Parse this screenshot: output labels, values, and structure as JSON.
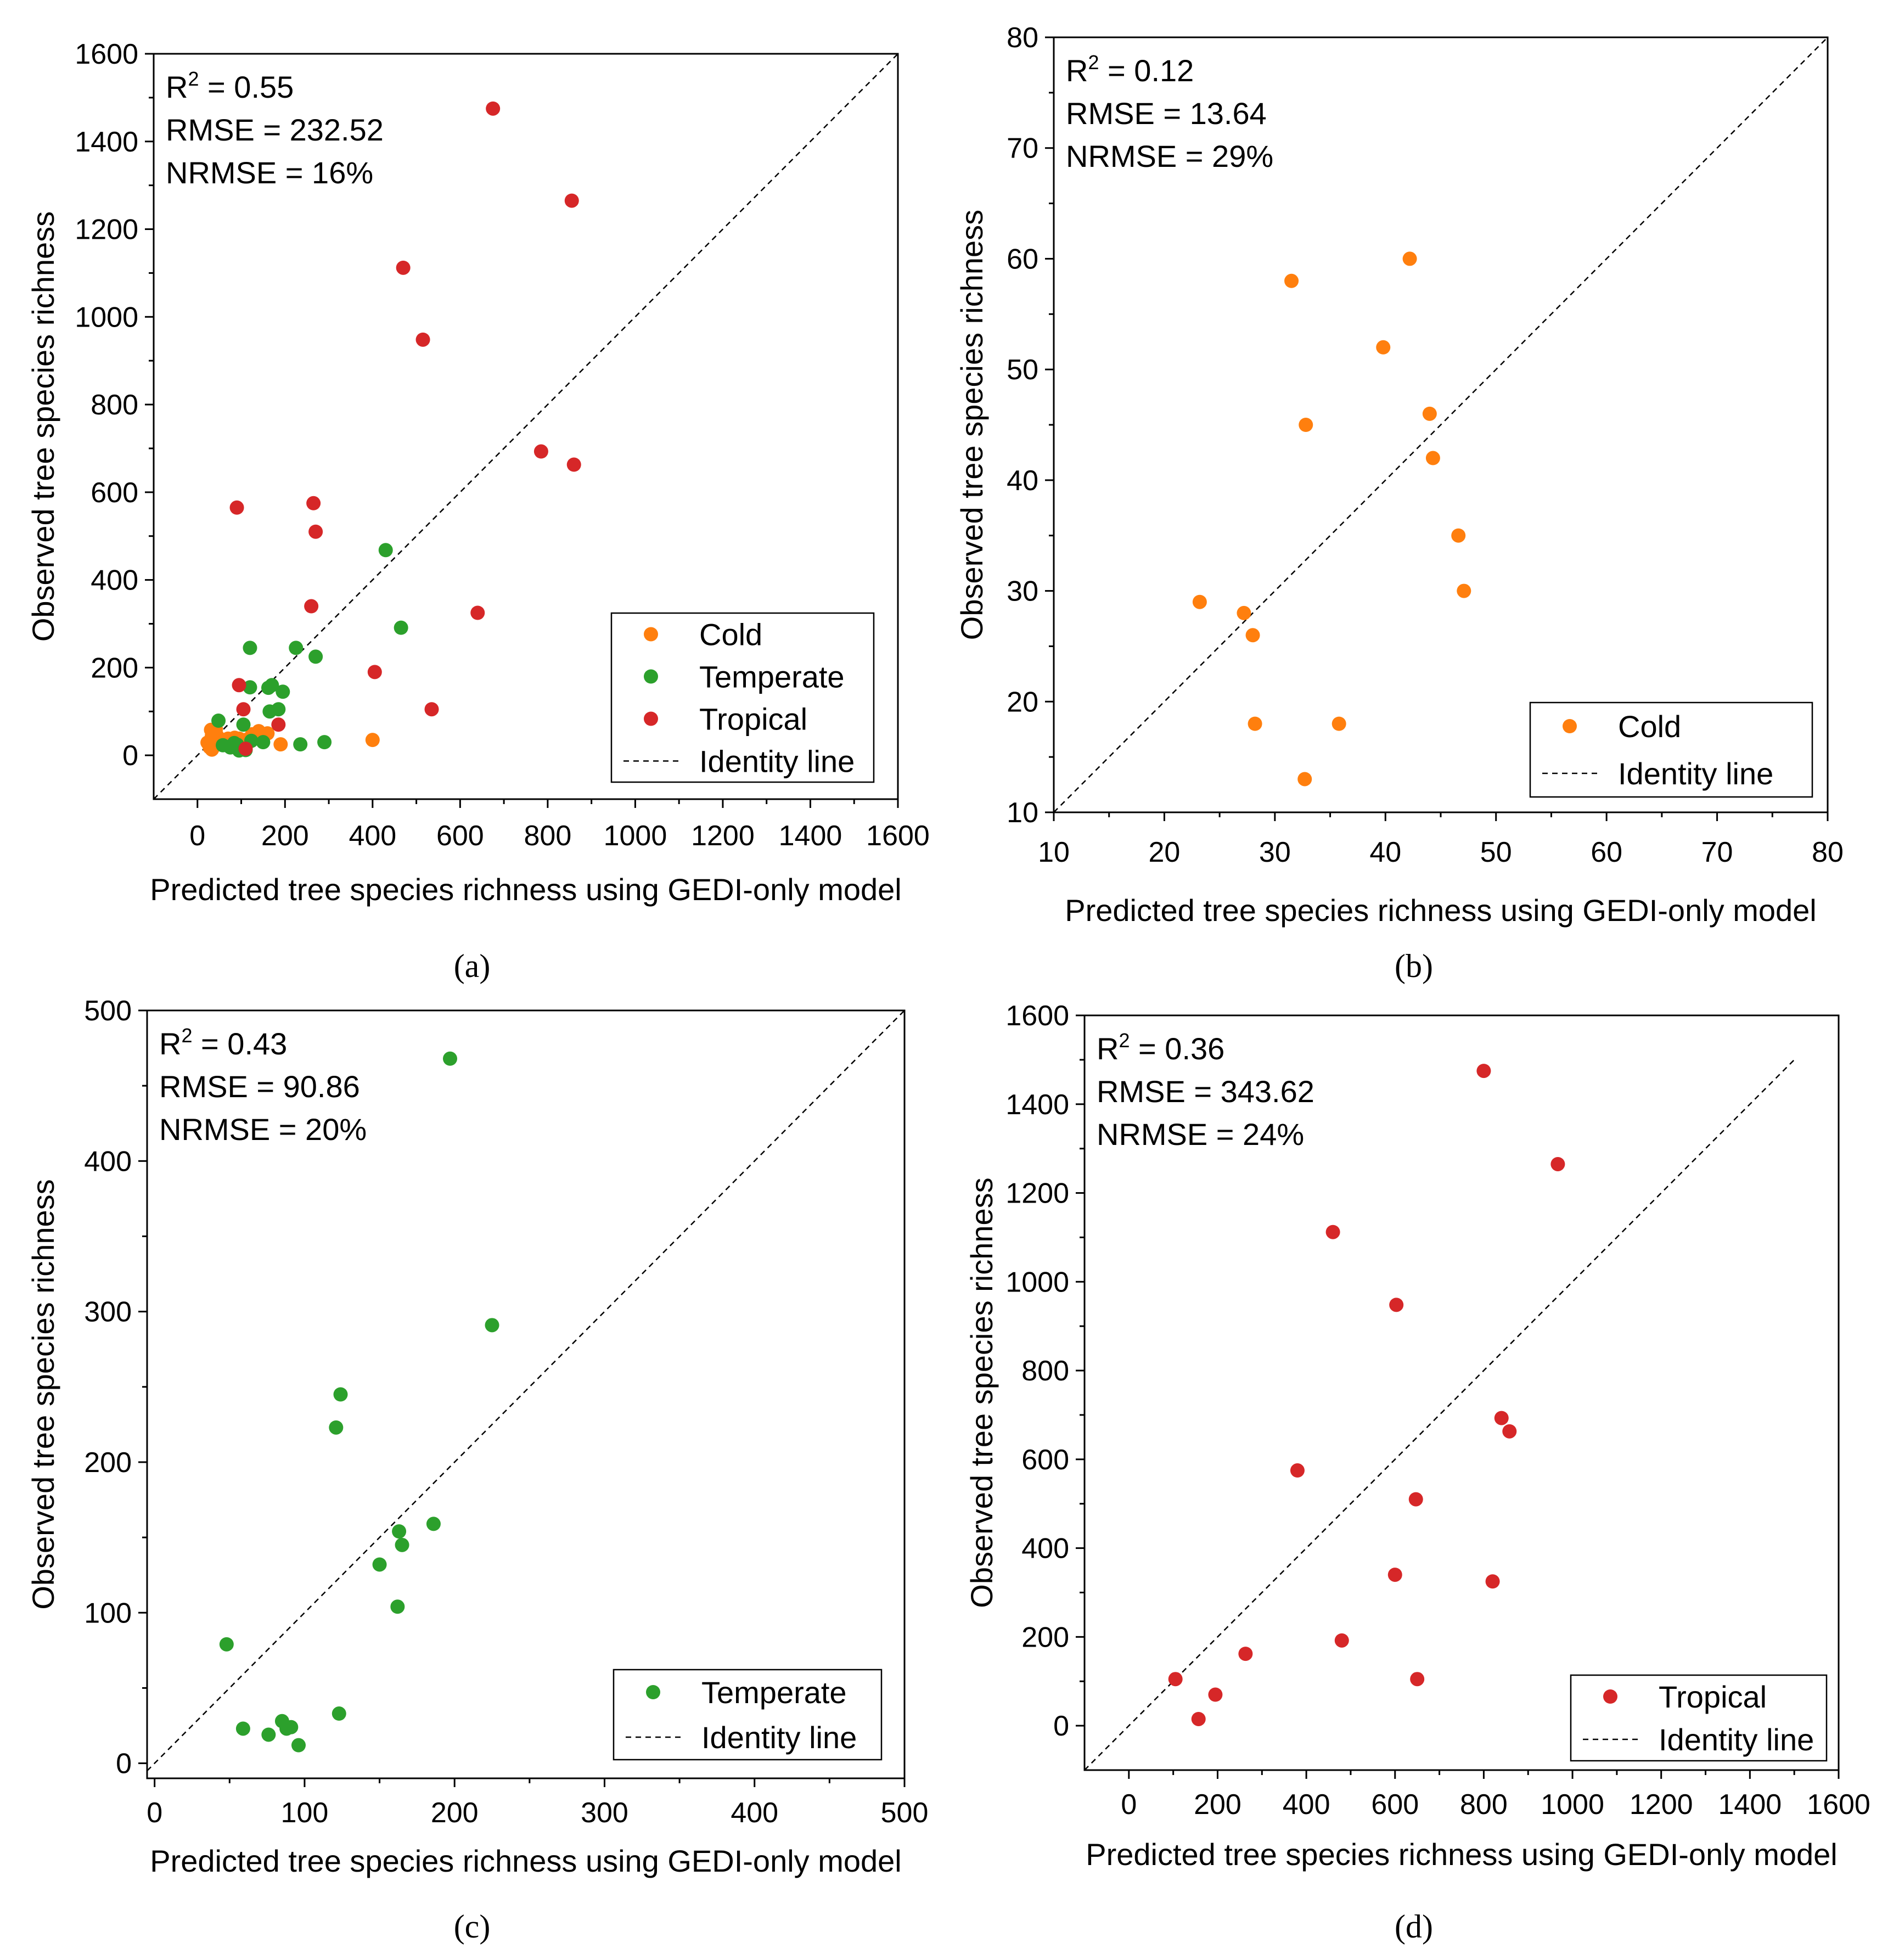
{
  "chart_data": [
    {
      "type": "scatter",
      "panel": "a",
      "caption": "(a)",
      "xlabel": "Predicted tree species richness using GEDI-only model",
      "ylabel": "Observed tree species richness",
      "xlim": [
        -100,
        1600
      ],
      "ylim": [
        -100,
        1600
      ],
      "xticks": [
        0,
        200,
        400,
        600,
        800,
        1000,
        1200,
        1400,
        1600
      ],
      "yticks": [
        0,
        200,
        400,
        600,
        800,
        1000,
        1200,
        1400,
        1600
      ],
      "stats": {
        "r2_label": "R",
        "r2_sup": "2",
        "r2_value": " = 0.55",
        "rmse": "RMSE = 232.52",
        "nrmse": "NRMSE = 16%"
      },
      "identity_range": [
        -100,
        1600
      ],
      "legend_position": "bottom-right",
      "legend": [
        "Cold",
        "Temperate",
        "Tropical",
        "Identity line"
      ],
      "series": [
        {
          "name": "Cold",
          "color": "#ff7f0e",
          "points": [
            [
              23,
              29
            ],
            [
              27,
              28
            ],
            [
              28,
              26
            ],
            [
              28,
              18
            ],
            [
              31,
              58
            ],
            [
              33,
              13
            ],
            [
              33,
              45
            ],
            [
              36,
              18
            ],
            [
              40,
              52
            ],
            [
              42,
              60
            ],
            [
              44,
              46
            ],
            [
              44,
              42
            ],
            [
              47,
              35
            ],
            [
              47,
              30
            ],
            [
              60,
              35
            ],
            [
              70,
              38
            ],
            [
              85,
              40
            ],
            [
              95,
              38
            ],
            [
              110,
              35
            ],
            [
              125,
              48
            ],
            [
              140,
              55
            ],
            [
              160,
              50
            ],
            [
              190,
              25
            ],
            [
              400,
              35
            ]
          ]
        },
        {
          "name": "Temperate",
          "color": "#2ca02c",
          "points": [
            [
              48,
              79
            ],
            [
              58,
              23
            ],
            [
              75,
              18
            ],
            [
              84,
              28
            ],
            [
              88,
              22
            ],
            [
              91,
              24
            ],
            [
              95,
              11
            ],
            [
              105,
              70
            ],
            [
              110,
              12
            ],
            [
              120,
              245
            ],
            [
              120,
              155
            ],
            [
              123,
              33
            ],
            [
              150,
              30
            ],
            [
              162,
              154
            ],
            [
              165,
              100
            ],
            [
              170,
              160
            ],
            [
              185,
              105
            ],
            [
              195,
              145
            ],
            [
              225,
              245
            ],
            [
              235,
              25
            ],
            [
              270,
              225
            ],
            [
              290,
              30
            ],
            [
              430,
              468
            ],
            [
              465,
              291
            ]
          ]
        },
        {
          "name": "Tropical",
          "color": "#d62728",
          "points": [
            [
              90,
              565
            ],
            [
              95,
              160
            ],
            [
              105,
              105
            ],
            [
              110,
              15
            ],
            [
              185,
              70
            ],
            [
              260,
              340
            ],
            [
              265,
              575
            ],
            [
              270,
              510
            ],
            [
              405,
              190
            ],
            [
              470,
              1112
            ],
            [
              515,
              948
            ],
            [
              535,
              105
            ],
            [
              640,
              325
            ],
            [
              675,
              1475
            ],
            [
              785,
              693
            ],
            [
              855,
              1265
            ],
            [
              860,
              663
            ]
          ]
        }
      ]
    },
    {
      "type": "scatter",
      "panel": "b",
      "caption": "(b)",
      "xlabel": "Predicted tree species richness using GEDI-only model",
      "ylabel": "Observed tree species richness",
      "xlim": [
        10,
        80
      ],
      "ylim": [
        10,
        80
      ],
      "xticks": [
        10,
        20,
        30,
        40,
        50,
        60,
        70,
        80
      ],
      "yticks": [
        10,
        20,
        30,
        40,
        50,
        60,
        70,
        80
      ],
      "stats": {
        "r2_label": "R",
        "r2_sup": "2",
        "r2_value": " = 0.12",
        "rmse": "RMSE = 13.64",
        "nrmse": "NRMSE = 29%"
      },
      "identity_range": [
        10,
        80
      ],
      "legend_position": "bottom-right",
      "legend": [
        "Cold",
        "Identity line"
      ],
      "series": [
        {
          "name": "Cold",
          "color": "#ff7f0e",
          "points": [
            [
              23.2,
              29
            ],
            [
              27.2,
              28
            ],
            [
              28,
              26
            ],
            [
              28.2,
              18
            ],
            [
              31.5,
              58
            ],
            [
              32.7,
              13
            ],
            [
              32.8,
              45
            ],
            [
              35.8,
              18
            ],
            [
              39.8,
              52
            ],
            [
              42.2,
              60
            ],
            [
              44,
              46
            ],
            [
              44.3,
              42
            ],
            [
              46.6,
              35
            ],
            [
              47.1,
              30
            ]
          ]
        }
      ]
    },
    {
      "type": "scatter",
      "panel": "c",
      "caption": "(c)",
      "xlabel": "Predicted tree species richness using GEDI-only model",
      "ylabel": "Observed tree species richness",
      "xlim": [
        -5,
        500
      ],
      "ylim": [
        -10,
        500
      ],
      "xticks": [
        0,
        100,
        200,
        300,
        400,
        500
      ],
      "yticks": [
        0,
        100,
        200,
        300,
        400,
        500
      ],
      "stats": {
        "r2_label": "R",
        "r2_sup": "2",
        "r2_value": " = 0.43",
        "rmse": "RMSE = 90.86",
        "nrmse": "NRMSE = 20%"
      },
      "identity_range": [
        -5,
        500
      ],
      "legend_position": "bottom-right",
      "legend": [
        "Temperate",
        "Identity line"
      ],
      "series": [
        {
          "name": "Temperate",
          "color": "#2ca02c",
          "points": [
            [
              48,
              79
            ],
            [
              59,
              23
            ],
            [
              76,
              19
            ],
            [
              85,
              28
            ],
            [
              88,
              23
            ],
            [
              91,
              24
            ],
            [
              96,
              12
            ],
            [
              121,
              223
            ],
            [
              123,
              33
            ],
            [
              124,
              245
            ],
            [
              150,
              132
            ],
            [
              162,
              104
            ],
            [
              163,
              154
            ],
            [
              165,
              145
            ],
            [
              186,
              159
            ],
            [
              197,
              468
            ],
            [
              225,
              291
            ]
          ]
        }
      ]
    },
    {
      "type": "scatter",
      "panel": "d",
      "caption": "(d)",
      "xlabel": "Predicted tree species richness using GEDI-only model",
      "ylabel": "Observed tree species richness",
      "xlim": [
        -100,
        1600
      ],
      "ylim": [
        -100,
        1600
      ],
      "xticks": [
        0,
        200,
        400,
        600,
        800,
        1000,
        1200,
        1400,
        1600
      ],
      "yticks": [
        0,
        200,
        400,
        600,
        800,
        1000,
        1200,
        1400,
        1600
      ],
      "stats": {
        "r2_label": "R",
        "r2_sup": "2",
        "r2_value": " = 0.36",
        "rmse": "RMSE = 343.62",
        "nrmse": "NRMSE = 24%"
      },
      "identity_range": [
        -100,
        1500
      ],
      "legend_position": "bottom-right",
      "legend": [
        "Tropical",
        "Identity line"
      ],
      "series": [
        {
          "name": "Tropical",
          "color": "#d62728",
          "points": [
            [
              105,
              105
            ],
            [
              157,
              15
            ],
            [
              195,
              70
            ],
            [
              263,
              162
            ],
            [
              380,
              575
            ],
            [
              460,
              1112
            ],
            [
              480,
              192
            ],
            [
              600,
              340
            ],
            [
              603,
              948
            ],
            [
              647,
              510
            ],
            [
              650,
              105
            ],
            [
              820,
              325
            ],
            [
              800,
              1475
            ],
            [
              840,
              693
            ],
            [
              858,
              663
            ],
            [
              967,
              1265
            ]
          ]
        }
      ]
    }
  ]
}
